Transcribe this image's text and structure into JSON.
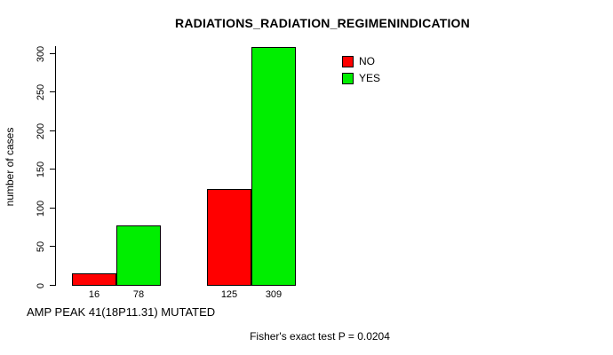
{
  "chart_data": {
    "type": "bar",
    "title": "RADIATIONS_RADIATION_REGIMENINDICATION",
    "xlabel": "AMP PEAK 41(18P11.31) MUTATED",
    "ylabel": "number of cases",
    "annotation": "Fisher's exact test P = 0.0204",
    "series": [
      {
        "name": "NO",
        "color": "#ff0000",
        "values": [
          16,
          125
        ]
      },
      {
        "name": "YES",
        "color": "#00ee00",
        "values": [
          78,
          309
        ]
      }
    ],
    "groups": 2,
    "bar_value_labels": [
      [
        16,
        78
      ],
      [
        125,
        309
      ]
    ],
    "ylim": [
      0,
      310
    ],
    "yticks": [
      0,
      50,
      100,
      150,
      200,
      250,
      300
    ],
    "grid": false,
    "legend_position": "top-right"
  }
}
